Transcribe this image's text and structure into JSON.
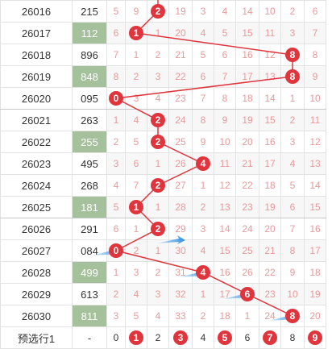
{
  "rows": [
    {
      "issue": "26016",
      "value": "215",
      "hl": false,
      "hit": 2,
      "cells": [
        "5",
        "9",
        "",
        "19",
        "3",
        "4",
        "14",
        "10",
        "2",
        "6"
      ]
    },
    {
      "issue": "26017",
      "value": "112",
      "hl": true,
      "hit": 1,
      "cells": [
        "6",
        "",
        "1",
        "20",
        "4",
        "5",
        "15",
        "11",
        "3",
        "7"
      ]
    },
    {
      "issue": "26018",
      "value": "896",
      "hl": false,
      "hit": 8,
      "cells": [
        "7",
        "1",
        "2",
        "21",
        "5",
        "6",
        "16",
        "12",
        "",
        "8"
      ]
    },
    {
      "issue": "26019",
      "value": "848",
      "hl": true,
      "hit": 8,
      "cells": [
        "8",
        "2",
        "3",
        "22",
        "6",
        "7",
        "17",
        "13",
        "",
        "9"
      ]
    },
    {
      "issue": "26020",
      "value": "095",
      "hl": false,
      "hit": 0,
      "cells": [
        "",
        "3",
        "4",
        "23",
        "7",
        "8",
        "18",
        "14",
        "1",
        "10"
      ]
    },
    {
      "issue": "26021",
      "value": "263",
      "hl": false,
      "hit": 2,
      "cells": [
        "1",
        "4",
        "",
        "24",
        "8",
        "9",
        "19",
        "15",
        "2",
        "11"
      ]
    },
    {
      "issue": "26022",
      "value": "255",
      "hl": true,
      "hit": 2,
      "cells": [
        "2",
        "5",
        "",
        "25",
        "9",
        "10",
        "20",
        "16",
        "3",
        "12"
      ]
    },
    {
      "issue": "26023",
      "value": "495",
      "hl": false,
      "hit": 4,
      "cells": [
        "3",
        "6",
        "1",
        "26",
        "",
        "11",
        "21",
        "17",
        "4",
        "13"
      ]
    },
    {
      "issue": "26024",
      "value": "268",
      "hl": false,
      "hit": 2,
      "cells": [
        "4",
        "7",
        "",
        "27",
        "1",
        "12",
        "22",
        "18",
        "5",
        "14"
      ]
    },
    {
      "issue": "26025",
      "value": "181",
      "hl": true,
      "hit": 1,
      "cells": [
        "5",
        "",
        "1",
        "28",
        "2",
        "13",
        "23",
        "19",
        "6",
        "15"
      ]
    },
    {
      "issue": "26026",
      "value": "291",
      "hl": false,
      "hit": 2,
      "cells": [
        "6",
        "1",
        "",
        "29",
        "3",
        "14",
        "24",
        "20",
        "7",
        "16"
      ]
    },
    {
      "issue": "26027",
      "value": "084",
      "hl": false,
      "hit": 0,
      "cells": [
        "",
        "2",
        "1",
        "30",
        "4",
        "15",
        "25",
        "21",
        "8",
        "17"
      ]
    },
    {
      "issue": "26028",
      "value": "499",
      "hl": true,
      "hit": 4,
      "cells": [
        "1",
        "3",
        "2",
        "31",
        "",
        "16",
        "26",
        "22",
        "9",
        "18"
      ]
    },
    {
      "issue": "26029",
      "value": "613",
      "hl": false,
      "hit": 6,
      "cells": [
        "2",
        "4",
        "3",
        "32",
        "1",
        "17",
        "",
        "23",
        "10",
        "19"
      ]
    },
    {
      "issue": "26030",
      "value": "811",
      "hl": true,
      "hit": 8,
      "cells": [
        "3",
        "5",
        "4",
        "33",
        "2",
        "18",
        "1",
        "24",
        "",
        "20"
      ]
    }
  ],
  "footer": {
    "label": "预选行1",
    "value": "-",
    "digits": [
      "0",
      "1",
      "2",
      "3",
      "4",
      "5",
      "6",
      "7",
      "8",
      "9"
    ],
    "selected": [
      "1",
      "3",
      "5",
      "7",
      "9"
    ]
  },
  "colors": {
    "ball": "#e0353d",
    "line": "#e0353d",
    "highlight": "#a4c19c",
    "arrow": "#2f8fe6",
    "miss": "#e89a9a"
  }
}
